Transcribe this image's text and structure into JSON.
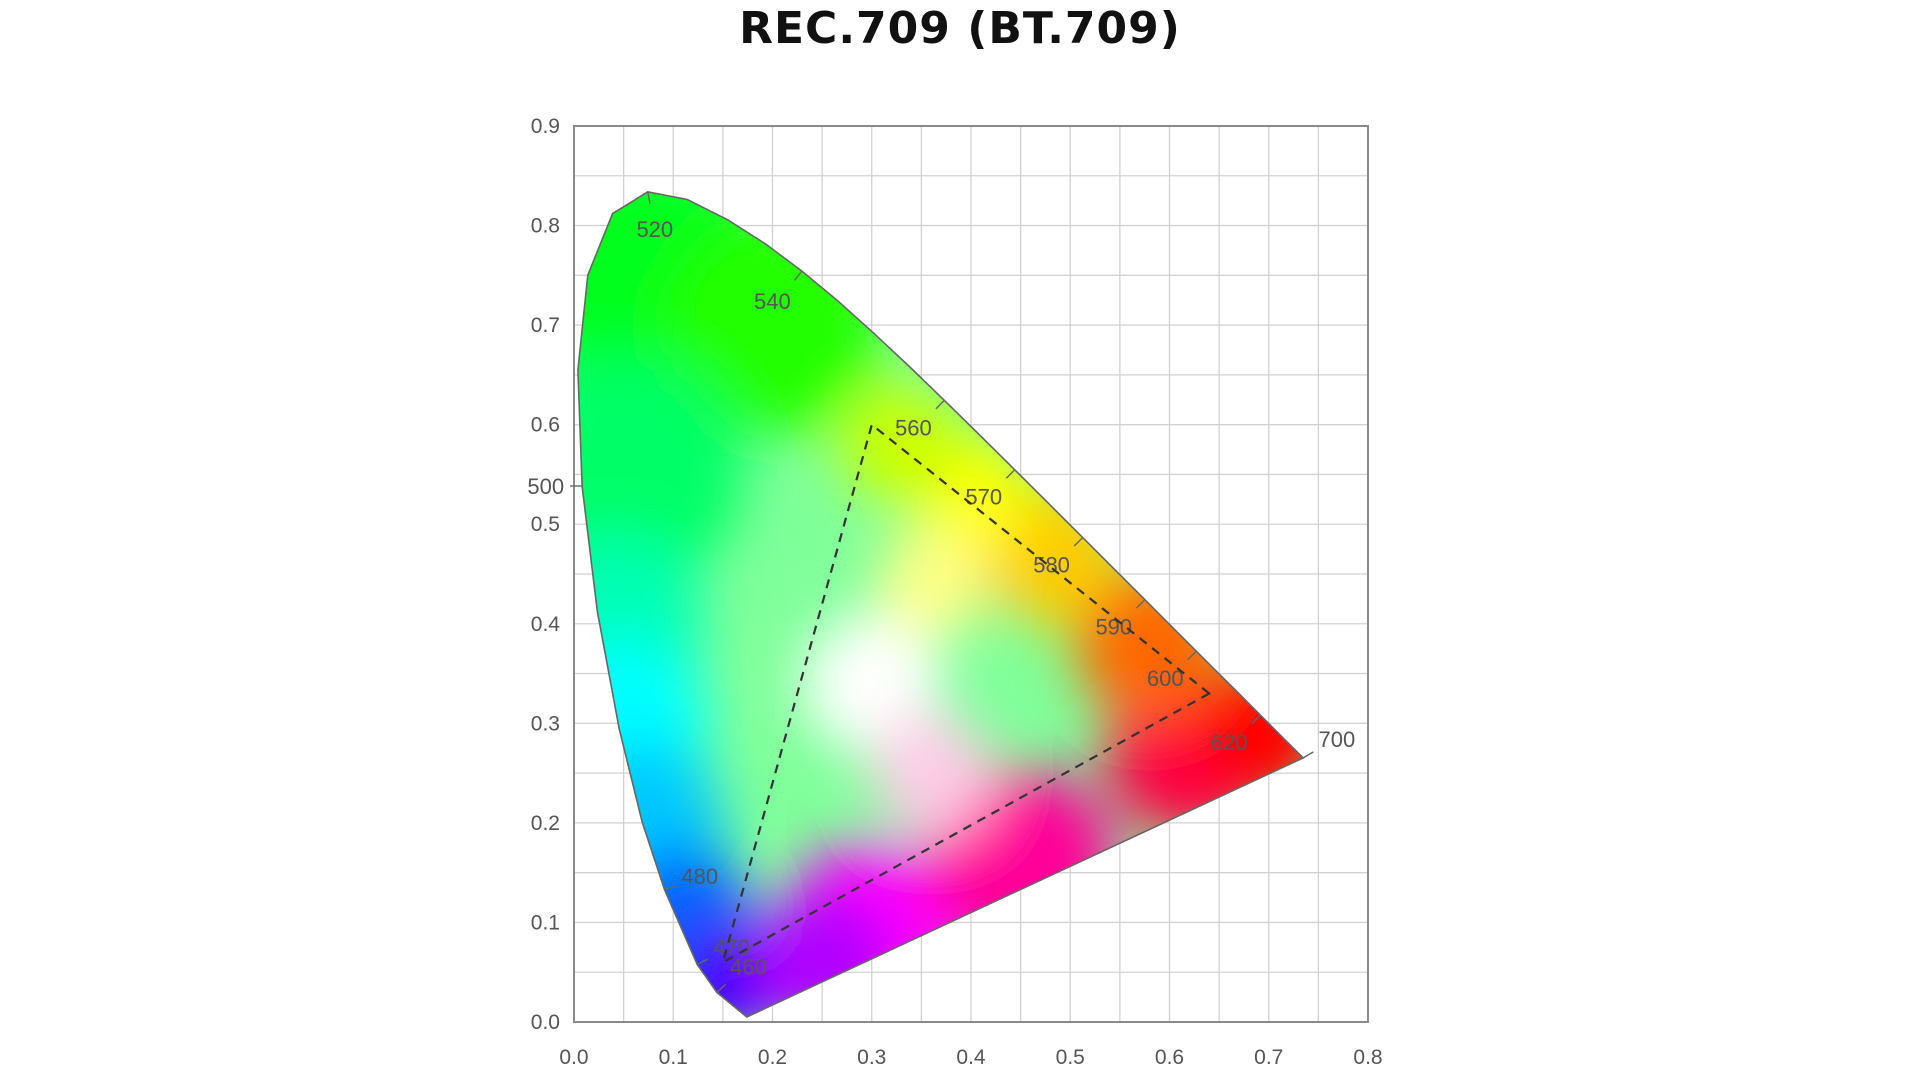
{
  "chart_data": {
    "type": "scatter",
    "title": "REC.709 (BT.709)",
    "xlabel": "",
    "ylabel": "",
    "xlim": [
      0.0,
      0.8
    ],
    "ylim": [
      0.0,
      0.9
    ],
    "x_ticks": [
      "0.0",
      "0.1",
      "0.2",
      "0.3",
      "0.4",
      "0.5",
      "0.6",
      "0.7",
      "0.8"
    ],
    "y_ticks": [
      "0.0",
      "0.1",
      "0.2",
      "0.3",
      "0.4",
      "0.5",
      "0.6",
      "0.7",
      "0.8",
      "0.9"
    ],
    "grid": true,
    "spectral_locus": [
      {
        "x": 0.1741,
        "y": 0.005
      },
      {
        "x": 0.144,
        "y": 0.0297,
        "label": "460"
      },
      {
        "x": 0.1241,
        "y": 0.0578,
        "label": "470"
      },
      {
        "x": 0.0913,
        "y": 0.1327,
        "label": "480"
      },
      {
        "x": 0.0687,
        "y": 0.2007
      },
      {
        "x": 0.0454,
        "y": 0.295
      },
      {
        "x": 0.0235,
        "y": 0.4127
      },
      {
        "x": 0.0082,
        "y": 0.5384,
        "label": "500"
      },
      {
        "x": 0.0039,
        "y": 0.6548
      },
      {
        "x": 0.0139,
        "y": 0.7502
      },
      {
        "x": 0.0389,
        "y": 0.812
      },
      {
        "x": 0.0743,
        "y": 0.8338,
        "label": "520"
      },
      {
        "x": 0.1142,
        "y": 0.8262
      },
      {
        "x": 0.1547,
        "y": 0.8059
      },
      {
        "x": 0.1929,
        "y": 0.7816
      },
      {
        "x": 0.2296,
        "y": 0.7543,
        "label": "540"
      },
      {
        "x": 0.2658,
        "y": 0.7243
      },
      {
        "x": 0.3016,
        "y": 0.6923
      },
      {
        "x": 0.3373,
        "y": 0.6589
      },
      {
        "x": 0.3731,
        "y": 0.6245,
        "label": "560"
      },
      {
        "x": 0.4087,
        "y": 0.5896
      },
      {
        "x": 0.4441,
        "y": 0.5547,
        "label": "570"
      },
      {
        "x": 0.4788,
        "y": 0.5202
      },
      {
        "x": 0.5125,
        "y": 0.4866,
        "label": "580"
      },
      {
        "x": 0.5448,
        "y": 0.4544
      },
      {
        "x": 0.5752,
        "y": 0.4242,
        "label": "590"
      },
      {
        "x": 0.6029,
        "y": 0.3965
      },
      {
        "x": 0.627,
        "y": 0.3725,
        "label": "600"
      },
      {
        "x": 0.6482,
        "y": 0.3514
      },
      {
        "x": 0.6658,
        "y": 0.334
      },
      {
        "x": 0.6915,
        "y": 0.3083,
        "label": "620"
      },
      {
        "x": 0.714,
        "y": 0.2859
      },
      {
        "x": 0.7347,
        "y": 0.2653,
        "label": "700"
      }
    ],
    "gamut_triangle": [
      {
        "x": 0.64,
        "y": 0.33
      },
      {
        "x": 0.3,
        "y": 0.6
      },
      {
        "x": 0.15,
        "y": 0.06
      }
    ],
    "colors": {
      "grid": "#d2d2d2",
      "frame": "#8a8a8a",
      "locus_edge": "#666666",
      "triangle": "#333333",
      "text": "#555555",
      "title": "#111111"
    }
  }
}
